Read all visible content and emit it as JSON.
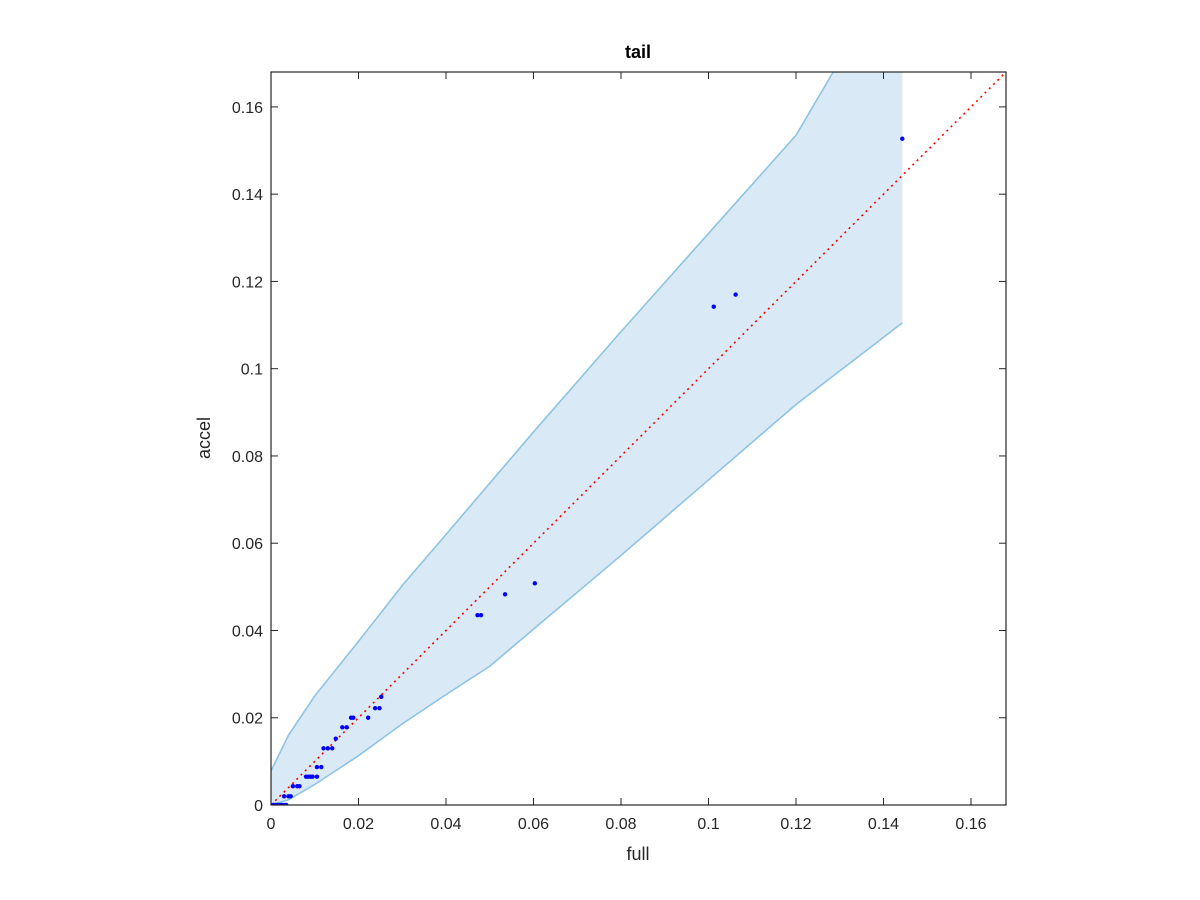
{
  "chart_data": {
    "type": "scatter",
    "title": "tail",
    "xlabel": "full",
    "ylabel": "accel",
    "xlim": [
      0,
      0.168
    ],
    "ylim": [
      0,
      0.168
    ],
    "xticks": [
      0,
      0.02,
      0.04,
      0.06,
      0.08,
      0.1,
      0.12,
      0.14,
      0.16
    ],
    "xtick_labels": [
      "0",
      "0.02",
      "0.04",
      "0.06",
      "0.08",
      "0.1",
      "0.12",
      "0.14",
      "0.16"
    ],
    "yticks": [
      0,
      0.02,
      0.04,
      0.06,
      0.08,
      0.1,
      0.12,
      0.14,
      0.16
    ],
    "ytick_labels": [
      "0",
      "0.02",
      "0.04",
      "0.06",
      "0.08",
      "0.1",
      "0.12",
      "0.14",
      "0.16"
    ],
    "grid": false,
    "colors": {
      "points": "#0000ff",
      "reference_line": "#ff0000",
      "band_fill": "#d9e9f5",
      "band_edge": "#8fc3e3",
      "axes": "#262626"
    },
    "points": [
      [
        0.0,
        0.0
      ],
      [
        0.0005,
        0.0
      ],
      [
        0.001,
        0.0
      ],
      [
        0.0015,
        0.0
      ],
      [
        0.002,
        0.0
      ],
      [
        0.0025,
        0.0
      ],
      [
        0.003,
        0.0
      ],
      [
        0.0035,
        0.0
      ],
      [
        0.003,
        0.002
      ],
      [
        0.004,
        0.002
      ],
      [
        0.0045,
        0.002
      ],
      [
        0.005,
        0.0043
      ],
      [
        0.006,
        0.0043
      ],
      [
        0.0065,
        0.0043
      ],
      [
        0.008,
        0.0065
      ],
      [
        0.0085,
        0.0065
      ],
      [
        0.009,
        0.0065
      ],
      [
        0.0095,
        0.0065
      ],
      [
        0.0105,
        0.0065
      ],
      [
        0.0105,
        0.0087
      ],
      [
        0.0115,
        0.0087
      ],
      [
        0.012,
        0.013
      ],
      [
        0.013,
        0.013
      ],
      [
        0.014,
        0.013
      ],
      [
        0.0148,
        0.0152
      ],
      [
        0.0163,
        0.0178
      ],
      [
        0.0173,
        0.0178
      ],
      [
        0.0183,
        0.02
      ],
      [
        0.0188,
        0.02
      ],
      [
        0.0222,
        0.02
      ],
      [
        0.0238,
        0.0222
      ],
      [
        0.0248,
        0.0222
      ],
      [
        0.0252,
        0.0248
      ],
      [
        0.0472,
        0.0435
      ],
      [
        0.048,
        0.0435
      ],
      [
        0.0535,
        0.0483
      ],
      [
        0.0603,
        0.0508
      ],
      [
        0.1012,
        0.1142
      ],
      [
        0.1062,
        0.117
      ],
      [
        0.1443,
        0.1527
      ]
    ],
    "band_upper": [
      [
        0,
        0.0078
      ],
      [
        0.004,
        0.016
      ],
      [
        0.01,
        0.025
      ],
      [
        0.02,
        0.0375
      ],
      [
        0.03,
        0.0503
      ],
      [
        0.04,
        0.062
      ],
      [
        0.06,
        0.0855
      ],
      [
        0.08,
        0.1085
      ],
      [
        0.1,
        0.131
      ],
      [
        0.12,
        0.1535
      ],
      [
        0.1285,
        0.168
      ]
    ],
    "band_lower": [
      [
        0,
        0.0
      ],
      [
        0.004,
        0.0012
      ],
      [
        0.01,
        0.0047
      ],
      [
        0.02,
        0.0113
      ],
      [
        0.03,
        0.0186
      ],
      [
        0.04,
        0.0253
      ],
      [
        0.05,
        0.0318
      ],
      [
        0.06,
        0.0403
      ],
      [
        0.08,
        0.0572
      ],
      [
        0.1,
        0.0745
      ],
      [
        0.12,
        0.0918
      ],
      [
        0.1443,
        0.1105
      ]
    ],
    "band_right_x": 0.1443,
    "reference_line": [
      [
        0,
        0
      ],
      [
        0.168,
        0.168
      ]
    ]
  }
}
